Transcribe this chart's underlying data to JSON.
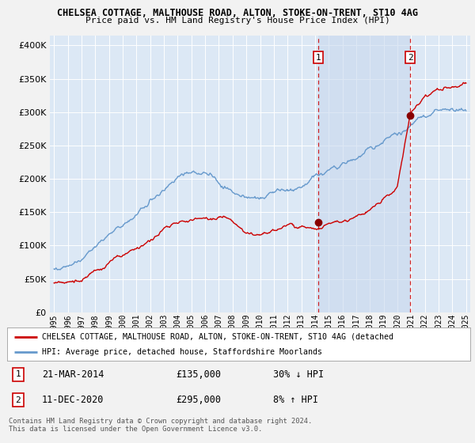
{
  "title1": "CHELSEA COTTAGE, MALTHOUSE ROAD, ALTON, STOKE-ON-TRENT, ST10 4AG",
  "title2": "Price paid vs. HM Land Registry's House Price Index (HPI)",
  "fig_bg": "#f2f2f2",
  "plot_bg": "#dce8f5",
  "shade_color": "#c8d8ee",
  "sale1_x": 2014.22,
  "sale1_y": 135000,
  "sale2_x": 2020.94,
  "sale2_y": 295000,
  "legend_line1": "CHELSEA COTTAGE, MALTHOUSE ROAD, ALTON, STOKE-ON-TRENT, ST10 4AG (detached",
  "legend_line2": "HPI: Average price, detached house, Staffordshire Moorlands",
  "footer": "Contains HM Land Registry data © Crown copyright and database right 2024.\nThis data is licensed under the Open Government Licence v3.0.",
  "yticks": [
    0,
    50000,
    100000,
    150000,
    200000,
    250000,
    300000,
    350000,
    400000
  ],
  "ylabels": [
    "£0",
    "£50K",
    "£100K",
    "£150K",
    "£200K",
    "£250K",
    "£300K",
    "£350K",
    "£400K"
  ],
  "ylim": [
    0,
    415000
  ],
  "xlim_start": 1994.7,
  "xlim_end": 2025.3,
  "red_color": "#cc0000",
  "blue_color": "#6699cc",
  "line_width": 1.0
}
